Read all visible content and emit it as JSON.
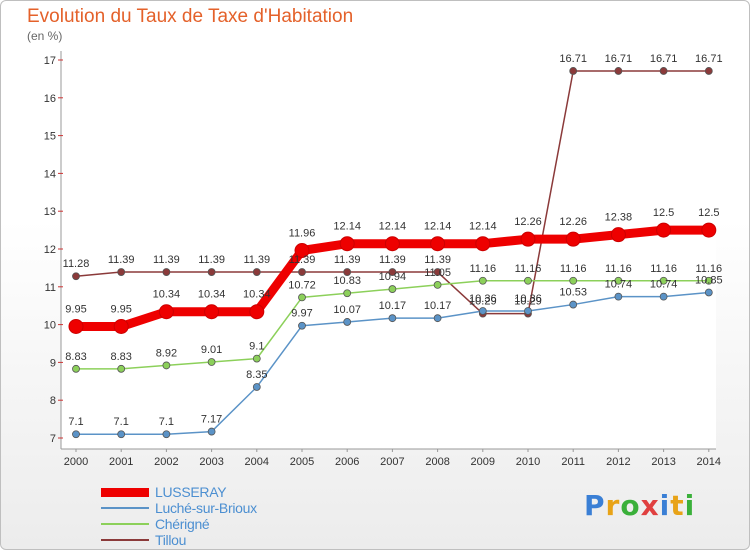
{
  "header": {
    "title": "Evolution du Taux de Taxe d'Habitation",
    "subtitle": "(en %)"
  },
  "logo": {
    "text": "Proxiti",
    "colors": [
      "#3a7fd5",
      "#e8a317",
      "#3ab03a",
      "#e04040"
    ]
  },
  "chart_data": {
    "type": "line",
    "title": "Evolution du Taux de Taxe d'Habitation",
    "ylabel": "(en %)",
    "xlabel": "",
    "x": [
      "2000",
      "2001",
      "2002",
      "2003",
      "2004",
      "2005",
      "2006",
      "2007",
      "2008",
      "2009",
      "2010",
      "2011",
      "2012",
      "2013",
      "2014"
    ],
    "yticks": [
      "7",
      "8",
      "9",
      "10",
      "11",
      "12",
      "13",
      "14",
      "15",
      "16",
      "17"
    ],
    "ylim": [
      7,
      17
    ],
    "grid": false,
    "legend_position": "bottom-left",
    "series": [
      {
        "name": "LUSSERAY",
        "color": "#ee0000",
        "values": [
          9.95,
          9.95,
          10.34,
          10.34,
          10.34,
          11.96,
          12.14,
          12.14,
          12.14,
          12.14,
          12.26,
          12.26,
          12.38,
          12.5,
          12.5
        ],
        "labels": [
          "9.95",
          "9.95",
          "10.34",
          "10.34",
          "10.34",
          "11.96",
          "12.14",
          "12.14",
          "12.14",
          "12.14",
          "12.26",
          "12.26",
          "12.38",
          "12.5",
          "12.5"
        ]
      },
      {
        "name": "Luché-sur-Brioux",
        "color": "#5b93c7",
        "values": [
          7.1,
          7.1,
          7.1,
          7.17,
          8.35,
          9.97,
          10.07,
          10.17,
          10.17,
          10.36,
          10.36,
          10.53,
          10.74,
          10.74,
          10.85
        ],
        "labels": [
          "7.1",
          "7.1",
          "7.1",
          "7.17",
          "8.35",
          "9.97",
          "10.07",
          "10.17",
          "10.17",
          "10.36",
          "10.36",
          "10.53",
          "10.74",
          "10.74",
          "10.85"
        ]
      },
      {
        "name": "Chérigné",
        "color": "#8cd05a",
        "values": [
          8.83,
          8.83,
          8.92,
          9.01,
          9.1,
          10.72,
          10.83,
          10.94,
          11.05,
          11.16,
          11.16,
          11.16,
          11.16,
          11.16,
          11.16
        ],
        "labels": [
          "8.83",
          "8.83",
          "8.92",
          "9.01",
          "9.1",
          "10.72",
          "10.83",
          "10.94",
          "11.05",
          "11.16",
          "11.16",
          "11.16",
          "11.16",
          "11.16",
          "11.16"
        ]
      },
      {
        "name": "Tillou",
        "color": "#8b3a3a",
        "values": [
          11.28,
          11.39,
          11.39,
          11.39,
          11.39,
          11.39,
          11.39,
          11.39,
          11.39,
          10.29,
          10.29,
          16.71,
          16.71,
          16.71,
          16.71
        ],
        "labels": [
          "11.28",
          "11.39",
          "11.39",
          "11.39",
          "11.39",
          "11.39",
          "11.39",
          "11.39",
          "11.39",
          "10.29",
          "10.29",
          "16.71",
          "16.71",
          "16.71",
          "16.71"
        ]
      }
    ]
  }
}
